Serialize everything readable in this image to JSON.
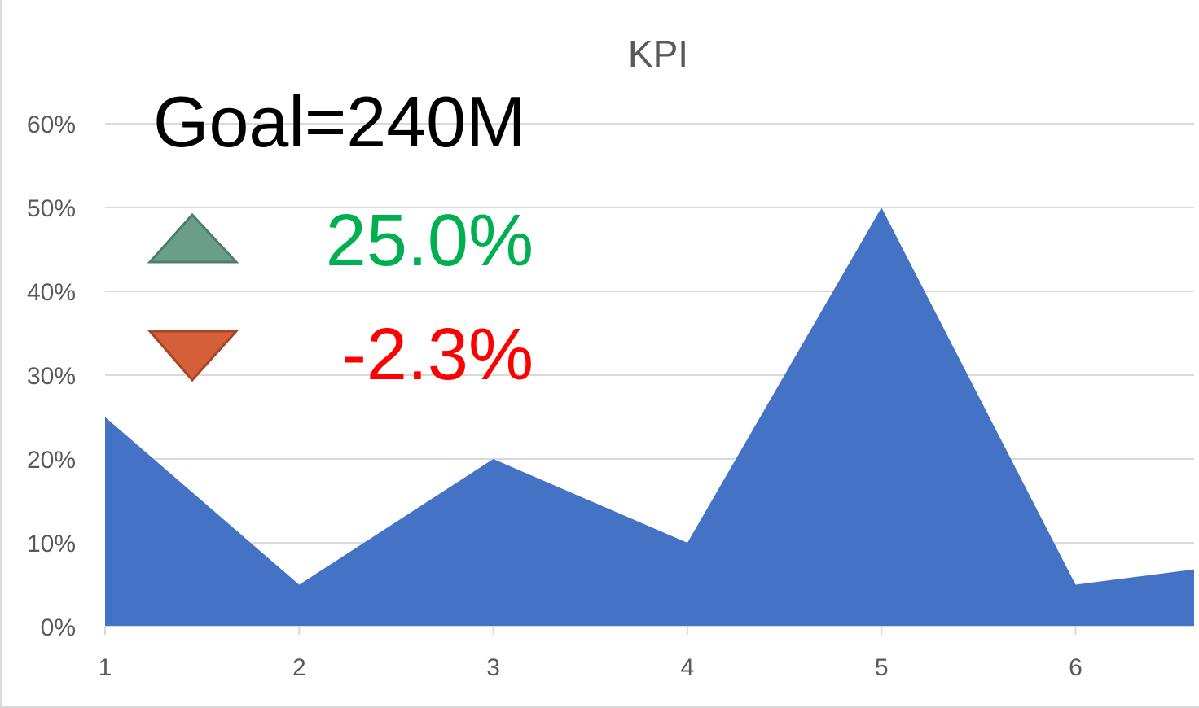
{
  "chart_data": {
    "type": "area",
    "title": "KPI",
    "xlabel": "",
    "ylabel": "",
    "x": [
      1,
      2,
      3,
      4,
      5,
      6,
      7
    ],
    "x_tick_labels": [
      "1",
      "2",
      "3",
      "4",
      "5",
      "6"
    ],
    "y_tick_labels": [
      "0%",
      "10%",
      "20%",
      "30%",
      "40%",
      "50%",
      "60%"
    ],
    "ylim": [
      0,
      0.6
    ],
    "grid": true,
    "series": [
      {
        "values": [
          0.25,
          0.05,
          0.2,
          0.1,
          0.5,
          0.05,
          0.08
        ],
        "color": "#4472c4"
      }
    ]
  },
  "overlay": {
    "goal_text": "Goal=240M",
    "up_value": "25.0%",
    "down_value": "-2.3%",
    "up_icon": "triangle-up-icon",
    "down_icon": "triangle-down-icon",
    "up_color": "#00b050",
    "down_color": "#ff0000",
    "up_icon_color": "#6a9e8a",
    "down_icon_color": "#d45f38"
  }
}
